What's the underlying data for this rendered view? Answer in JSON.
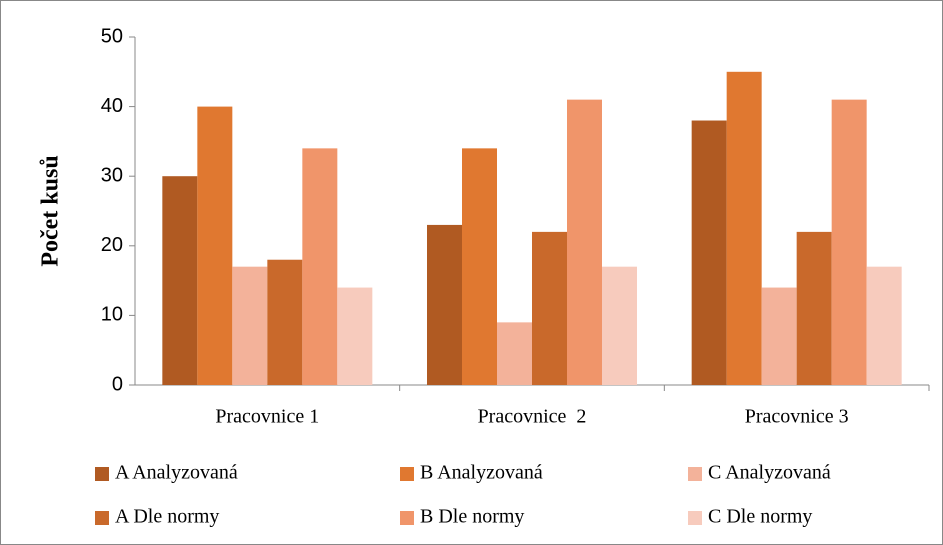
{
  "chart_data": {
    "type": "bar",
    "y_label": "Počet kusů",
    "categories": [
      "Pracovnice 1",
      "Pracovnice  2",
      "Pracovnice 3"
    ],
    "series": [
      {
        "name": "A Analyzovaná",
        "color": "#b05a22",
        "values": [
          30,
          23,
          38
        ]
      },
      {
        "name": "B Analyzovaná",
        "color": "#e07830",
        "values": [
          40,
          34,
          45
        ]
      },
      {
        "name": "C Analyzovaná",
        "color": "#f3b29a",
        "values": [
          17,
          9,
          14
        ]
      },
      {
        "name": "A Dle normy",
        "color": "#c9692b",
        "values": [
          18,
          22,
          22
        ]
      },
      {
        "name": "B Dle normy",
        "color": "#f0956a",
        "values": [
          34,
          41,
          41
        ]
      },
      {
        "name": "C Dle normy",
        "color": "#f7cbbd",
        "values": [
          14,
          17,
          17
        ]
      }
    ],
    "ylim": [
      0,
      50
    ],
    "yticks": [
      0,
      10,
      20,
      30,
      40,
      50
    ],
    "grid": false
  }
}
